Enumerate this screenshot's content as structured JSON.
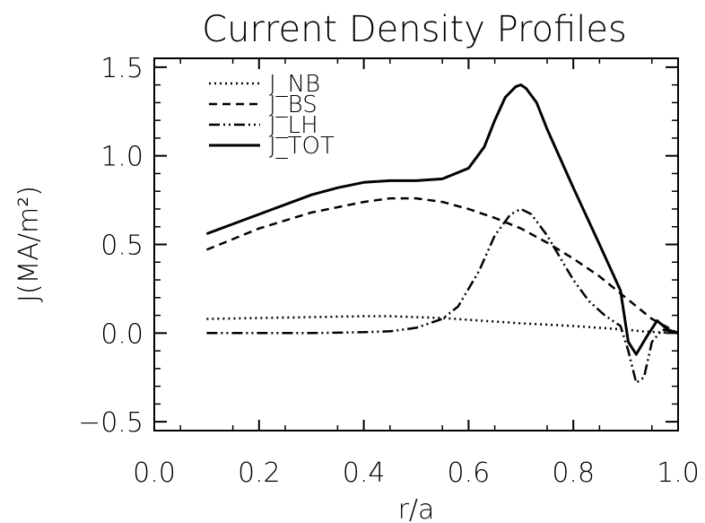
{
  "chart_data": {
    "type": "line",
    "title": "Current Density Profiles",
    "xlabel": "r/a",
    "ylabel": "J(MA/m²)",
    "xlim": [
      0.0,
      1.0
    ],
    "ylim": [
      -0.55,
      1.55
    ],
    "xticks": [
      "0.0",
      "0.2",
      "0.4",
      "0.6",
      "0.8",
      "1.0"
    ],
    "yticks": [
      "−0.5",
      "0.0",
      "0.5",
      "1.0",
      "1.5"
    ],
    "xtick_values": [
      0.0,
      0.2,
      0.4,
      0.6,
      0.8,
      1.0
    ],
    "ytick_values": [
      -0.5,
      0.0,
      0.5,
      1.0,
      1.5
    ],
    "grid": false,
    "legend_position": "top-left",
    "series": [
      {
        "name": "J_NB",
        "style": "dotted",
        "color": "#000000",
        "x": [
          0.1,
          0.2,
          0.3,
          0.4,
          0.45,
          0.5,
          0.55,
          0.6,
          0.7,
          0.8,
          0.9,
          0.93,
          0.96,
          1.0
        ],
        "y": [
          0.08,
          0.085,
          0.09,
          0.095,
          0.095,
          0.09,
          0.085,
          0.075,
          0.055,
          0.04,
          0.02,
          0.01,
          0.005,
          0.0
        ]
      },
      {
        "name": "J_BS",
        "style": "dashed",
        "color": "#000000",
        "x": [
          0.1,
          0.2,
          0.3,
          0.4,
          0.45,
          0.5,
          0.55,
          0.6,
          0.65,
          0.7,
          0.75,
          0.8,
          0.85,
          0.9,
          0.95,
          1.0
        ],
        "y": [
          0.47,
          0.59,
          0.68,
          0.74,
          0.76,
          0.76,
          0.74,
          0.7,
          0.65,
          0.59,
          0.51,
          0.42,
          0.32,
          0.2,
          0.08,
          0.0
        ]
      },
      {
        "name": "J_LH",
        "style": "dashdotdot",
        "color": "#000000",
        "x": [
          0.1,
          0.2,
          0.3,
          0.4,
          0.45,
          0.5,
          0.55,
          0.58,
          0.62,
          0.65,
          0.68,
          0.7,
          0.72,
          0.75,
          0.78,
          0.8,
          0.83,
          0.86,
          0.89,
          0.905,
          0.92,
          0.935,
          0.95,
          0.97,
          1.0
        ],
        "y": [
          0.0,
          0.0,
          0.0,
          0.005,
          0.01,
          0.03,
          0.08,
          0.15,
          0.35,
          0.55,
          0.67,
          0.7,
          0.67,
          0.55,
          0.4,
          0.3,
          0.18,
          0.1,
          0.04,
          -0.1,
          -0.28,
          -0.25,
          -0.05,
          0.02,
          0.0
        ]
      },
      {
        "name": "J_TOT",
        "style": "solid",
        "color": "#000000",
        "x": [
          0.1,
          0.2,
          0.3,
          0.35,
          0.4,
          0.45,
          0.5,
          0.55,
          0.6,
          0.63,
          0.65,
          0.67,
          0.69,
          0.7,
          0.71,
          0.73,
          0.75,
          0.8,
          0.85,
          0.89,
          0.905,
          0.92,
          0.94,
          0.96,
          0.98,
          1.0
        ],
        "y": [
          0.56,
          0.67,
          0.78,
          0.82,
          0.85,
          0.86,
          0.86,
          0.87,
          0.93,
          1.05,
          1.2,
          1.33,
          1.39,
          1.4,
          1.38,
          1.3,
          1.15,
          0.82,
          0.5,
          0.24,
          -0.05,
          -0.12,
          -0.02,
          0.07,
          0.02,
          0.0
        ]
      }
    ]
  }
}
